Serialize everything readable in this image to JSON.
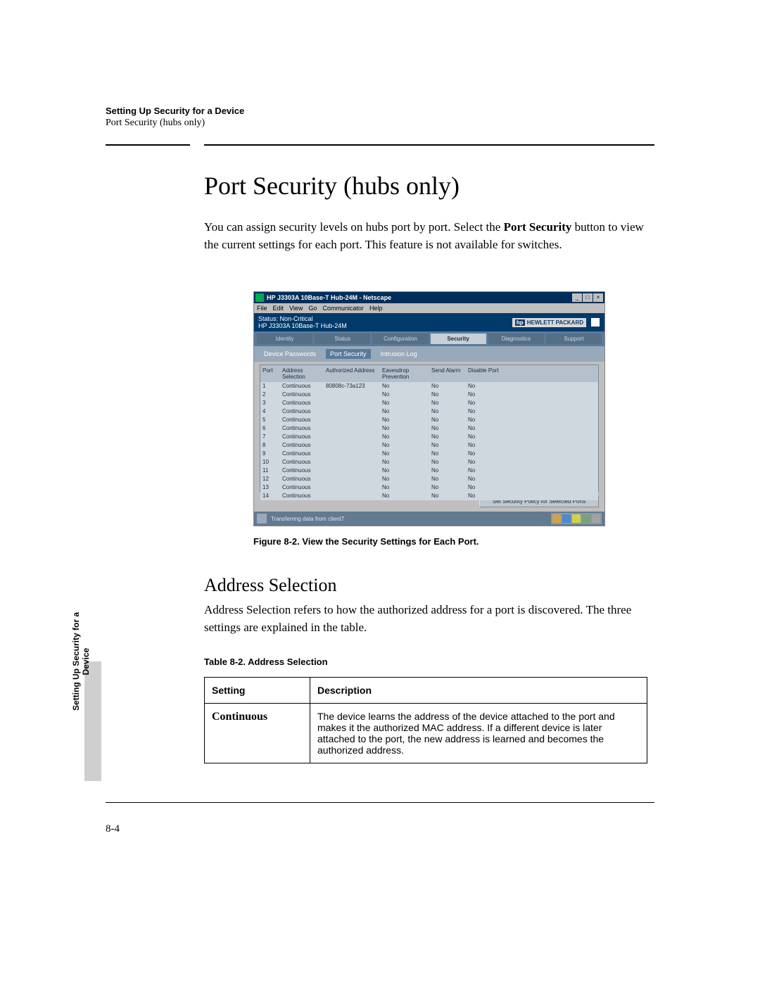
{
  "header": {
    "chapter": "Setting Up Security for a Device",
    "section": "Port Security (hubs only)"
  },
  "title": "Port Security (hubs only)",
  "intro_pre": "You can assign security levels on hubs port by port. Select the ",
  "intro_bold": "Port Security",
  "intro_post": " button to view the current settings for each port. This feature is not available for switches.",
  "figcap": "Figure 8-2.   View the Security Settings for Each Port.",
  "h2": "Address Selection",
  "h2_para": "Address Selection refers to how the authorized address for a port is discovered. The three settings are explained in the table.",
  "tabcap": "Table 8-2.   Address Selection",
  "def_table": {
    "h1": "Setting",
    "h2": "Description",
    "r1c1": "Continuous",
    "r1c2": "The device learns the address of the device attached to the port and makes it the authorized MAC address. If a different device is later attached to the port, the new address is learned and becomes the authorized address."
  },
  "sidetab": "Setting Up Security for a Device",
  "pgnum": "8-4",
  "app": {
    "title": "HP J3303A 10Base-T Hub-24M - Netscape",
    "menus": [
      "File",
      "Edit",
      "View",
      "Go",
      "Communicator",
      "Help"
    ],
    "status_label": "Status:  Non-Critical",
    "status_sub": "HP J3303A 10Base-T Hub-24M",
    "hp_logo": "HEWLETT PACKARD",
    "navtabs": [
      "Identity",
      "Status",
      "Configuration",
      "Security",
      "Diagnostics",
      "Support"
    ],
    "active_nav": 3,
    "subtabs": [
      "Device Passwords",
      "Port Security",
      "Intrusion Log"
    ],
    "active_sub": 1,
    "columns": [
      "Port",
      "Address Selection",
      "Authorized Address",
      "Eavesdrop Prevention",
      "Send Alarm",
      "Disable Port"
    ],
    "rows": [
      [
        "1",
        "Continuous",
        "80808c-73a123",
        "No",
        "No",
        "No"
      ],
      [
        "2",
        "Continuous",
        "",
        "No",
        "No",
        "No"
      ],
      [
        "3",
        "Continuous",
        "",
        "No",
        "No",
        "No"
      ],
      [
        "4",
        "Continuous",
        "",
        "No",
        "No",
        "No"
      ],
      [
        "5",
        "Continuous",
        "",
        "No",
        "No",
        "No"
      ],
      [
        "6",
        "Continuous",
        "",
        "No",
        "No",
        "No"
      ],
      [
        "7",
        "Continuous",
        "",
        "No",
        "No",
        "No"
      ],
      [
        "8",
        "Continuous",
        "",
        "No",
        "No",
        "No"
      ],
      [
        "9",
        "Continuous",
        "",
        "No",
        "No",
        "No"
      ],
      [
        "10",
        "Continuous",
        "",
        "No",
        "No",
        "No"
      ],
      [
        "11",
        "Continuous",
        "",
        "No",
        "No",
        "No"
      ],
      [
        "12",
        "Continuous",
        "",
        "No",
        "No",
        "No"
      ],
      [
        "13",
        "Continuous",
        "",
        "No",
        "No",
        "No"
      ],
      [
        "14",
        "Continuous",
        "",
        "No",
        "No",
        "No"
      ]
    ],
    "set_btn": "Set Security Policy for Selected Ports",
    "statusbar": "Transferring data from client7",
    "colors": {
      "titlebar": "#002e5a",
      "band": "#003a6b",
      "nav": "#5a7a9a",
      "panel": "#c7cfd7"
    }
  }
}
